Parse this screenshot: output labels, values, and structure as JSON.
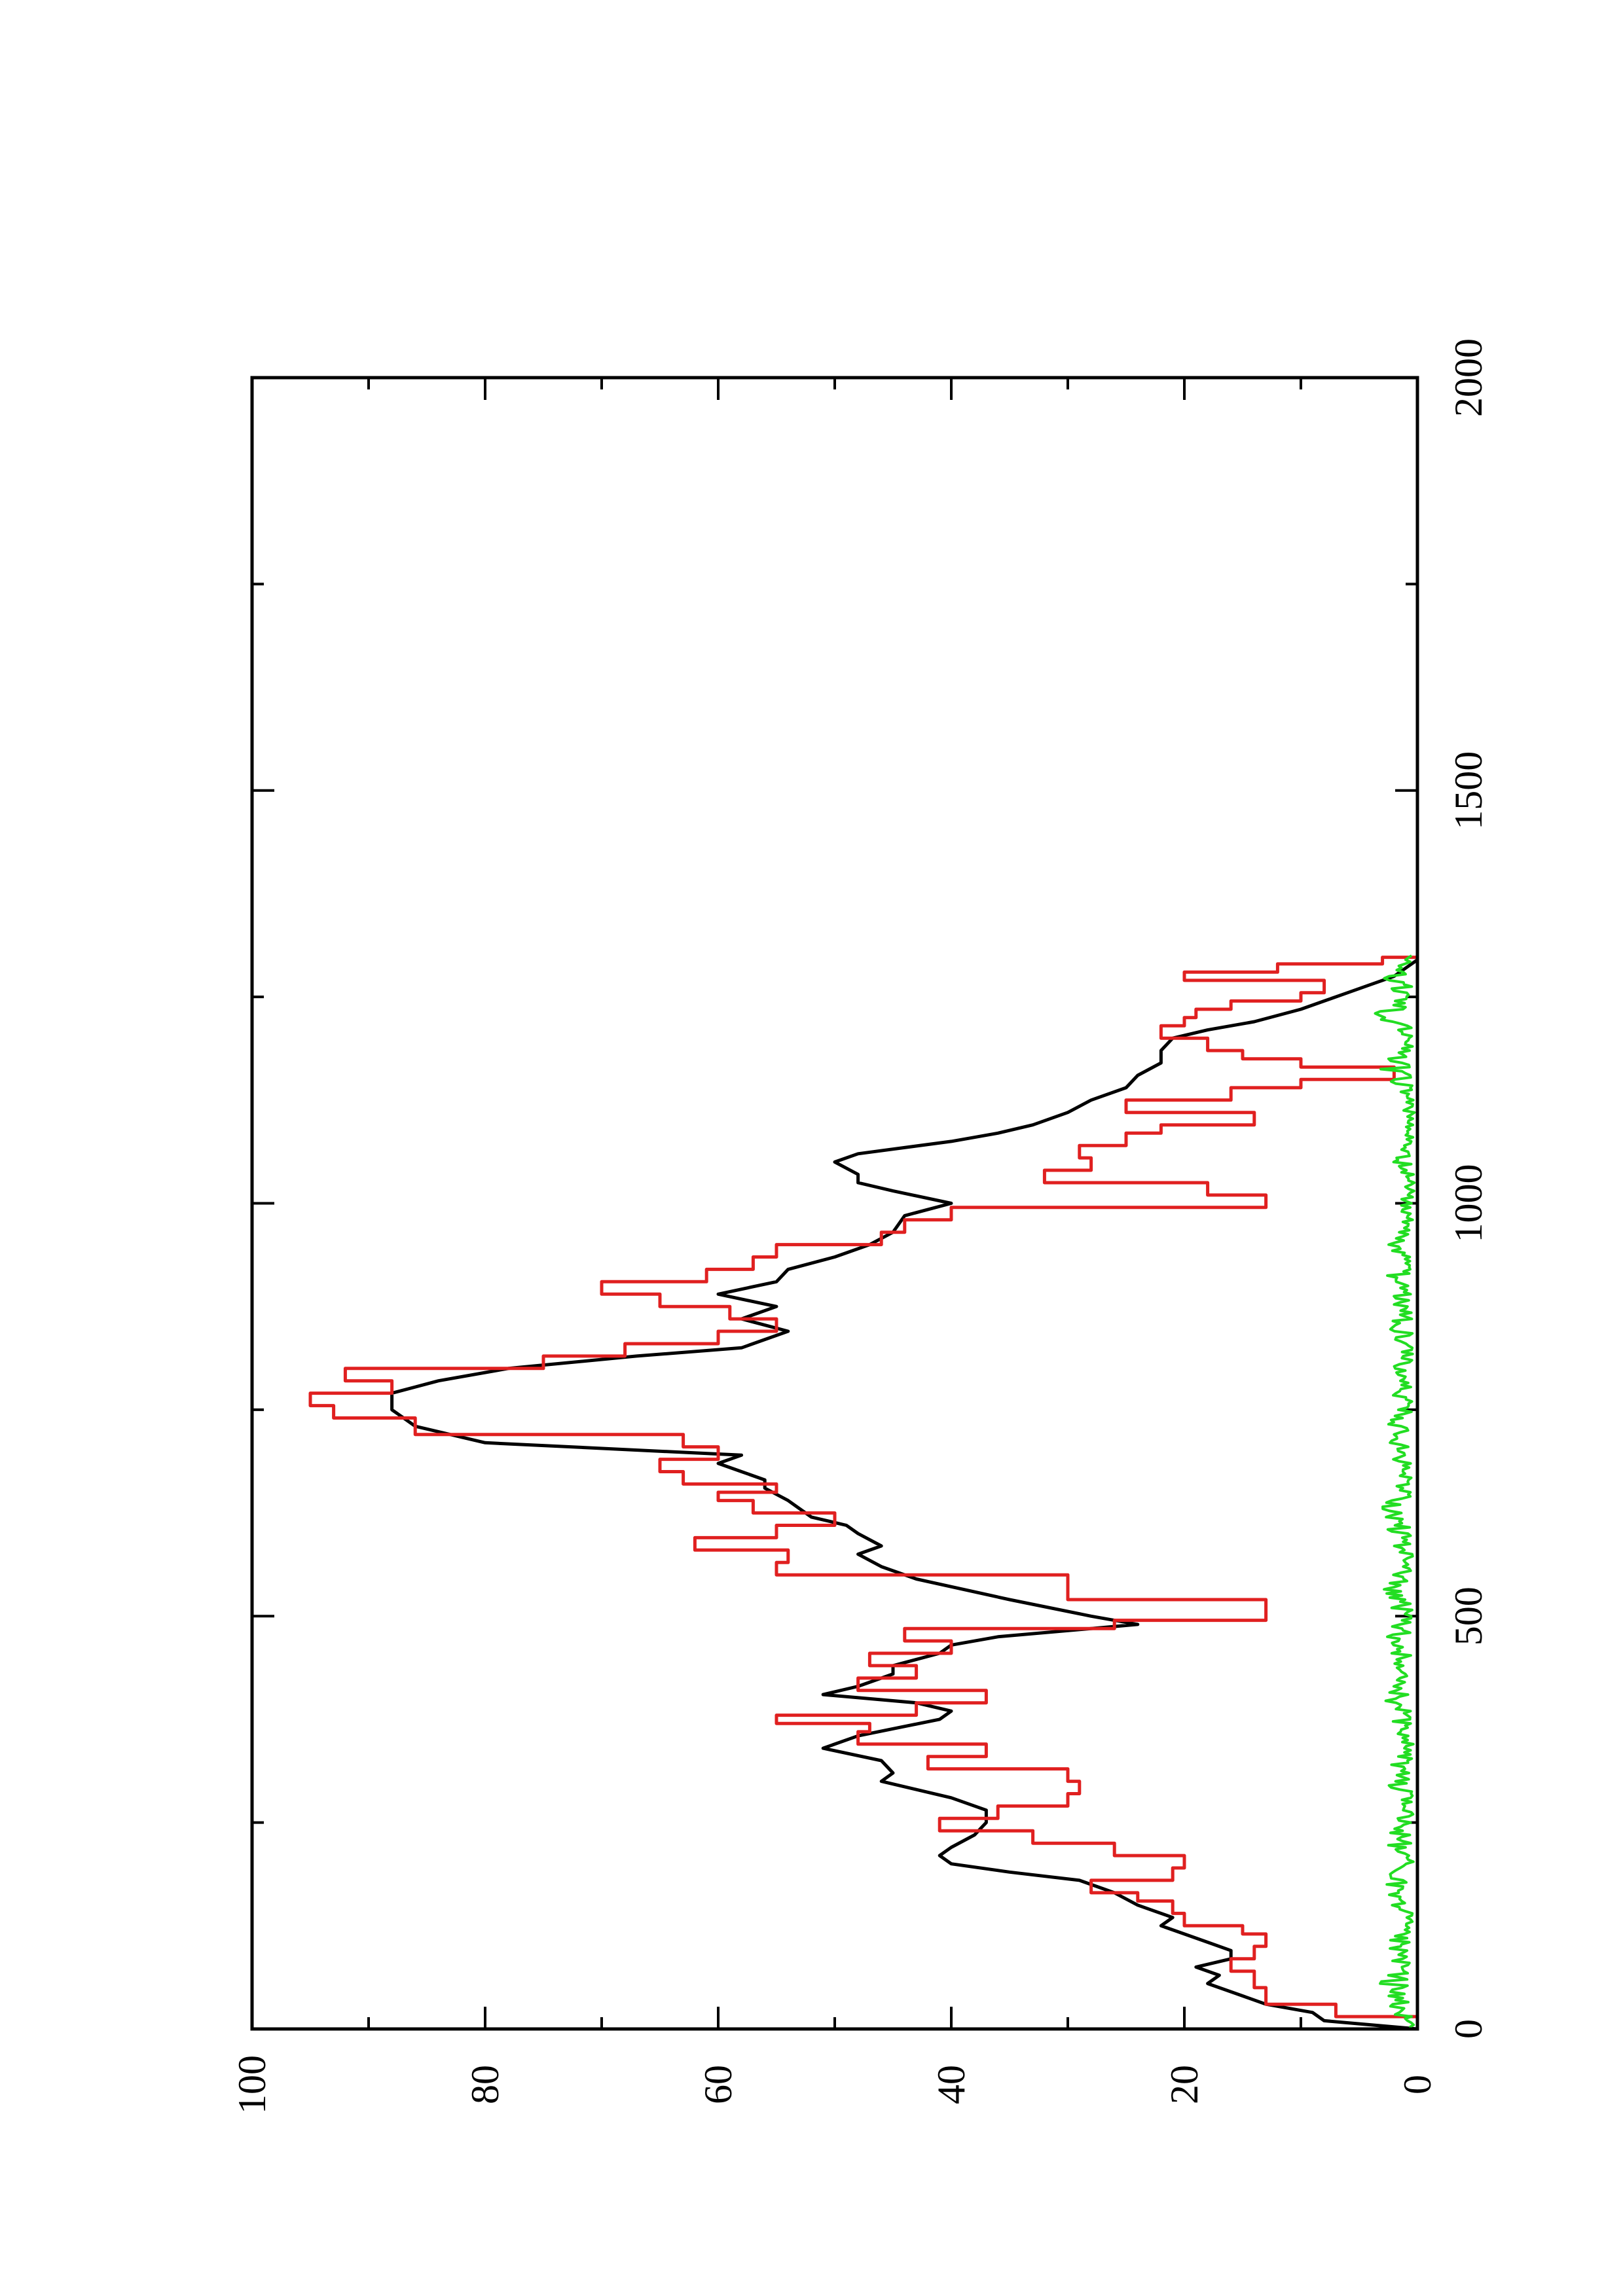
{
  "chart_data": {
    "type": "line",
    "orientation": "rotated-90-ccw",
    "title": "",
    "xlabel": "",
    "ylabel": "",
    "xlim": [
      0,
      2000
    ],
    "ylim": [
      0,
      100
    ],
    "x_ticks": [
      0,
      500,
      1000,
      1500,
      2000
    ],
    "x_tick_labels": [
      "0",
      "500",
      "1000",
      "1500",
      "2000"
    ],
    "x_minor_ticks": [
      250,
      750,
      1250,
      1750
    ],
    "y_ticks": [
      0,
      20,
      40,
      60,
      80,
      100
    ],
    "y_tick_labels": [
      "0",
      "20",
      "40",
      "60",
      "80",
      "100"
    ],
    "y_minor_ticks": [
      10,
      30,
      50,
      70,
      90
    ],
    "grid": false,
    "legend": "none",
    "series": [
      {
        "color": "#000000",
        "style": "smooth",
        "points": [
          [
            0,
            0
          ],
          [
            10,
            8
          ],
          [
            20,
            9
          ],
          [
            30,
            13
          ],
          [
            40,
            15
          ],
          [
            55,
            18
          ],
          [
            65,
            17
          ],
          [
            75,
            19
          ],
          [
            85,
            16
          ],
          [
            95,
            16
          ],
          [
            105,
            18
          ],
          [
            115,
            20
          ],
          [
            125,
            22
          ],
          [
            135,
            21
          ],
          [
            150,
            24
          ],
          [
            165,
            26
          ],
          [
            180,
            29
          ],
          [
            190,
            35
          ],
          [
            200,
            40
          ],
          [
            210,
            41
          ],
          [
            220,
            40
          ],
          [
            235,
            38
          ],
          [
            250,
            37
          ],
          [
            265,
            37
          ],
          [
            280,
            40
          ],
          [
            290,
            43
          ],
          [
            300,
            46
          ],
          [
            310,
            45
          ],
          [
            325,
            46
          ],
          [
            340,
            51
          ],
          [
            355,
            48
          ],
          [
            375,
            41
          ],
          [
            385,
            40
          ],
          [
            395,
            43
          ],
          [
            405,
            51
          ],
          [
            415,
            48
          ],
          [
            430,
            45
          ],
          [
            440,
            45
          ],
          [
            455,
            41
          ],
          [
            465,
            40
          ],
          [
            475,
            36
          ],
          [
            485,
            28
          ],
          [
            490,
            24
          ],
          [
            500,
            28
          ],
          [
            520,
            35
          ],
          [
            545,
            43
          ],
          [
            560,
            46
          ],
          [
            575,
            48
          ],
          [
            585,
            46
          ],
          [
            600,
            48
          ],
          [
            610,
            49
          ],
          [
            620,
            52
          ],
          [
            630,
            53
          ],
          [
            640,
            54
          ],
          [
            655,
            56
          ],
          [
            665,
            56
          ],
          [
            675,
            58
          ],
          [
            685,
            60
          ],
          [
            695,
            58
          ],
          [
            710,
            80
          ],
          [
            730,
            86
          ],
          [
            750,
            88
          ],
          [
            770,
            88
          ],
          [
            785,
            84
          ],
          [
            800,
            78
          ],
          [
            815,
            67
          ],
          [
            825,
            58
          ],
          [
            835,
            56
          ],
          [
            845,
            54
          ],
          [
            860,
            58
          ],
          [
            875,
            55
          ],
          [
            890,
            60
          ],
          [
            905,
            55
          ],
          [
            920,
            54
          ],
          [
            935,
            50
          ],
          [
            950,
            47
          ],
          [
            965,
            45
          ],
          [
            985,
            44
          ],
          [
            1000,
            40
          ],
          [
            1015,
            45
          ],
          [
            1025,
            48
          ],
          [
            1035,
            48
          ],
          [
            1050,
            50
          ],
          [
            1060,
            48
          ],
          [
            1075,
            40
          ],
          [
            1085,
            36
          ],
          [
            1095,
            33
          ],
          [
            1110,
            30
          ],
          [
            1125,
            28
          ],
          [
            1140,
            25
          ],
          [
            1155,
            24
          ],
          [
            1170,
            22
          ],
          [
            1185,
            22
          ],
          [
            1200,
            21
          ],
          [
            1210,
            18
          ],
          [
            1220,
            14
          ],
          [
            1235,
            10
          ],
          [
            1245,
            8
          ],
          [
            1255,
            6
          ],
          [
            1265,
            4
          ],
          [
            1275,
            2
          ],
          [
            1285,
            1
          ],
          [
            1295,
            0
          ]
        ]
      },
      {
        "color": "#e02020",
        "style": "step",
        "points": [
          [
            0,
            0
          ],
          [
            15,
            7
          ],
          [
            30,
            13
          ],
          [
            50,
            14
          ],
          [
            70,
            16
          ],
          [
            85,
            14
          ],
          [
            100,
            13
          ],
          [
            115,
            15
          ],
          [
            125,
            20
          ],
          [
            140,
            21
          ],
          [
            155,
            24
          ],
          [
            165,
            28
          ],
          [
            180,
            21
          ],
          [
            195,
            20
          ],
          [
            210,
            26
          ],
          [
            225,
            33
          ],
          [
            240,
            41
          ],
          [
            255,
            36
          ],
          [
            270,
            30
          ],
          [
            285,
            29
          ],
          [
            300,
            30
          ],
          [
            315,
            42
          ],
          [
            330,
            37
          ],
          [
            345,
            48
          ],
          [
            360,
            47
          ],
          [
            370,
            55
          ],
          [
            380,
            43
          ],
          [
            395,
            37
          ],
          [
            410,
            48
          ],
          [
            425,
            43
          ],
          [
            440,
            47
          ],
          [
            455,
            40
          ],
          [
            470,
            44
          ],
          [
            485,
            26
          ],
          [
            495,
            13
          ],
          [
            520,
            30
          ],
          [
            550,
            55
          ],
          [
            565,
            54
          ],
          [
            580,
            62
          ],
          [
            595,
            55
          ],
          [
            610,
            50
          ],
          [
            625,
            57
          ],
          [
            640,
            60
          ],
          [
            650,
            55
          ],
          [
            660,
            63
          ],
          [
            675,
            65
          ],
          [
            690,
            60
          ],
          [
            705,
            63
          ],
          [
            720,
            86
          ],
          [
            740,
            93
          ],
          [
            755,
            95
          ],
          [
            770,
            88
          ],
          [
            785,
            92
          ],
          [
            800,
            75
          ],
          [
            815,
            68
          ],
          [
            830,
            60
          ],
          [
            845,
            55
          ],
          [
            860,
            59
          ],
          [
            875,
            65
          ],
          [
            890,
            70
          ],
          [
            905,
            61
          ],
          [
            920,
            57
          ],
          [
            935,
            55
          ],
          [
            950,
            46
          ],
          [
            965,
            44
          ],
          [
            980,
            40
          ],
          [
            995,
            13
          ],
          [
            1010,
            18
          ],
          [
            1025,
            32
          ],
          [
            1040,
            28
          ],
          [
            1055,
            29
          ],
          [
            1070,
            25
          ],
          [
            1085,
            22
          ],
          [
            1095,
            14
          ],
          [
            1110,
            25
          ],
          [
            1125,
            16
          ],
          [
            1140,
            10
          ],
          [
            1150,
            2
          ],
          [
            1165,
            10
          ],
          [
            1175,
            15
          ],
          [
            1185,
            18
          ],
          [
            1200,
            22
          ],
          [
            1215,
            20
          ],
          [
            1225,
            19
          ],
          [
            1235,
            16
          ],
          [
            1245,
            10
          ],
          [
            1255,
            8
          ],
          [
            1270,
            20
          ],
          [
            1280,
            12
          ],
          [
            1290,
            3
          ],
          [
            1298,
            0
          ]
        ]
      },
      {
        "color": "#22dd22",
        "style": "noise",
        "points": [
          [
            0,
            0.5
          ],
          [
            25,
            1.8
          ],
          [
            50,
            2.5
          ],
          [
            75,
            1.2
          ],
          [
            100,
            2.0
          ],
          [
            125,
            0.8
          ],
          [
            150,
            1.5
          ],
          [
            175,
            2.2
          ],
          [
            200,
            1.0
          ],
          [
            225,
            1.8
          ],
          [
            250,
            1.3
          ],
          [
            275,
            0.9
          ],
          [
            300,
            2.1
          ],
          [
            325,
            1.7
          ],
          [
            350,
            1.0
          ],
          [
            375,
            1.6
          ],
          [
            400,
            2.0
          ],
          [
            425,
            1.1
          ],
          [
            450,
            1.4
          ],
          [
            475,
            1.9
          ],
          [
            500,
            1.0
          ],
          [
            525,
            2.3
          ],
          [
            550,
            1.5
          ],
          [
            575,
            1.2
          ],
          [
            600,
            1.8
          ],
          [
            625,
            2.4
          ],
          [
            650,
            1.3
          ],
          [
            675,
            1.0
          ],
          [
            700,
            1.7
          ],
          [
            725,
            2.0
          ],
          [
            750,
            1.2
          ],
          [
            775,
            1.5
          ],
          [
            800,
            1.9
          ],
          [
            825,
            1.1
          ],
          [
            850,
            1.6
          ],
          [
            875,
            1.3
          ],
          [
            900,
            2.2
          ],
          [
            925,
            1.4
          ],
          [
            950,
            1.8
          ],
          [
            975,
            0.9
          ],
          [
            1000,
            1.2
          ],
          [
            1025,
            0.8
          ],
          [
            1050,
            1.4
          ],
          [
            1075,
            0.7
          ],
          [
            1100,
            1.0
          ],
          [
            1125,
            0.6
          ],
          [
            1150,
            1.8
          ],
          [
            1175,
            2.4
          ],
          [
            1200,
            0.5
          ],
          [
            1225,
            2.8
          ],
          [
            1250,
            1.2
          ],
          [
            1275,
            2.0
          ],
          [
            1300,
            0.5
          ]
        ]
      }
    ]
  }
}
